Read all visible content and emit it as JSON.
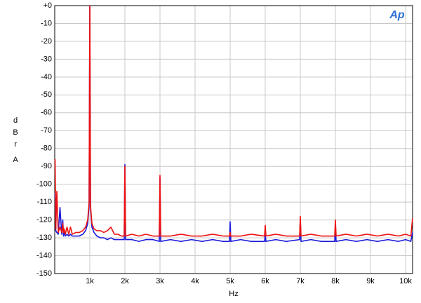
{
  "chart_data": {
    "type": "line",
    "logo": "Ap",
    "xlabel": "Hz",
    "ylabel": "dBr",
    "ylabel_unit": "A",
    "xlim": [
      0,
      10200
    ],
    "ylim": [
      -150,
      0
    ],
    "xticks": [
      {
        "value": 1000,
        "label": "1k"
      },
      {
        "value": 2000,
        "label": "2k"
      },
      {
        "value": 3000,
        "label": "3k"
      },
      {
        "value": 4000,
        "label": "4k"
      },
      {
        "value": 5000,
        "label": "5k"
      },
      {
        "value": 6000,
        "label": "6k"
      },
      {
        "value": 7000,
        "label": "7k"
      },
      {
        "value": 8000,
        "label": "8k"
      },
      {
        "value": 9000,
        "label": "9k"
      },
      {
        "value": 10000,
        "label": "10k"
      }
    ],
    "yticks": [
      {
        "value": 0,
        "label": "+0"
      },
      -10,
      -20,
      -30,
      -40,
      -50,
      -60,
      -70,
      -80,
      -90,
      -100,
      -110,
      -120,
      -130,
      -140,
      -150
    ],
    "grid": true,
    "x": [
      10,
      30,
      60,
      100,
      150,
      200,
      230,
      250,
      270,
      300,
      350,
      400,
      450,
      500,
      600,
      700,
      800,
      880,
      940,
      980,
      1000,
      1020,
      1060,
      1120,
      1200,
      1300,
      1400,
      1500,
      1600,
      1700,
      1800,
      1900,
      1980,
      2000,
      2020,
      2200,
      2400,
      2600,
      2800,
      2980,
      3000,
      3020,
      3300,
      3600,
      3900,
      4200,
      4500,
      4800,
      4980,
      5000,
      5020,
      5300,
      5600,
      5980,
      6000,
      6020,
      6300,
      6600,
      6980,
      7000,
      7020,
      7300,
      7600,
      7980,
      8000,
      8020,
      8300,
      8600,
      8900,
      9200,
      9500,
      9800,
      10000,
      10150,
      10200
    ],
    "series": [
      {
        "color": "#1a1adc",
        "values": [
          -105,
          -126,
          -127,
          -128,
          -113,
          -128,
          -120,
          -129,
          -127,
          -129,
          -128,
          -129,
          -128,
          -129,
          -129,
          -129,
          -128,
          -126,
          -122,
          -112,
          0,
          -113,
          -124,
          -127,
          -129,
          -130,
          -130,
          -131,
          -130,
          -131,
          -131,
          -131,
          -131,
          -89,
          -131,
          -131,
          -132,
          -131,
          -131,
          -132,
          -96,
          -132,
          -131,
          -132,
          -131,
          -132,
          -131,
          -132,
          -132,
          -121,
          -132,
          -131,
          -132,
          -132,
          -128,
          -132,
          -131,
          -132,
          -131,
          -120,
          -132,
          -131,
          -132,
          -132,
          -124,
          -132,
          -131,
          -132,
          -131,
          -132,
          -131,
          -132,
          -131,
          -132,
          -127
        ]
      },
      {
        "color": "#ee1111",
        "values": [
          -86,
          -125,
          -104,
          -127,
          -124,
          -127,
          -122,
          -127,
          -125,
          -128,
          -124,
          -128,
          -124,
          -128,
          -127,
          -127,
          -126,
          -124,
          -120,
          -110,
          0,
          -112,
          -122,
          -125,
          -126,
          -126,
          -127,
          -126,
          -124,
          -128,
          -128,
          -129,
          -129,
          -90,
          -129,
          -128,
          -129,
          -128,
          -129,
          -129,
          -95,
          -129,
          -129,
          -128,
          -129,
          -129,
          -128,
          -129,
          -129,
          -127,
          -129,
          -129,
          -128,
          -129,
          -123,
          -129,
          -128,
          -129,
          -129,
          -118,
          -129,
          -128,
          -129,
          -129,
          -120,
          -129,
          -128,
          -129,
          -128,
          -129,
          -128,
          -129,
          -128,
          -129,
          -119
        ]
      }
    ]
  }
}
